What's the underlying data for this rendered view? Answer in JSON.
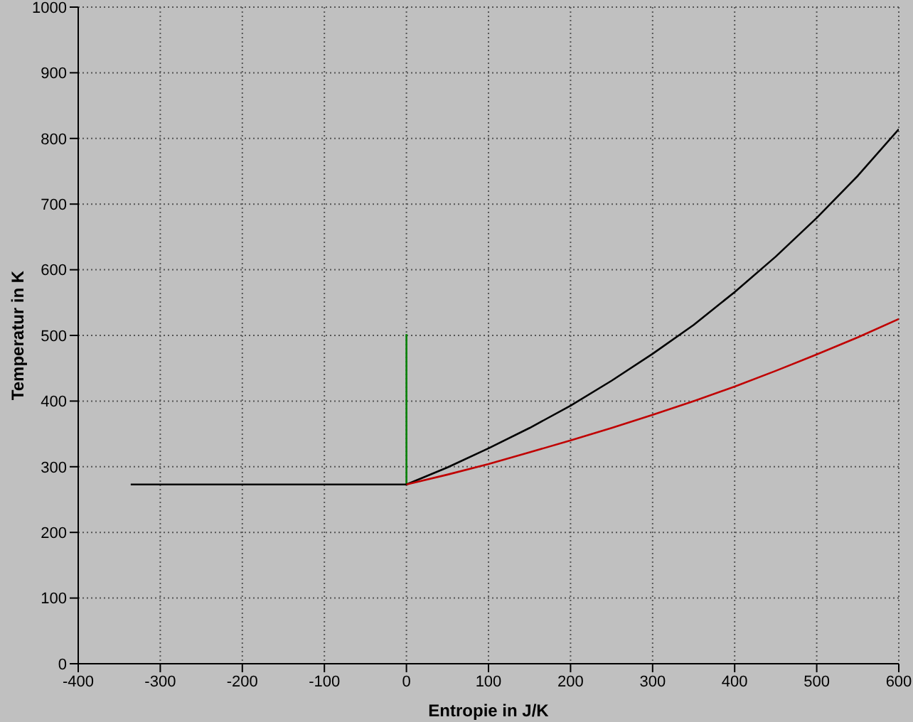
{
  "chart_data": {
    "type": "line",
    "xlabel": "Entropie in J/K",
    "ylabel": "Temperatur in K",
    "xlim": [
      -400,
      600
    ],
    "ylim": [
      0,
      1000
    ],
    "xticks": [
      -400,
      -300,
      -200,
      -100,
      0,
      100,
      200,
      300,
      400,
      500,
      600
    ],
    "yticks": [
      0,
      100,
      200,
      300,
      400,
      500,
      600,
      700,
      800,
      900,
      1000
    ],
    "grid": true,
    "series": [
      {
        "type": "line",
        "color": "#008000",
        "x": [
          0,
          0
        ],
        "values": [
          273,
          502
        ]
      },
      {
        "type": "line",
        "color": "#000000",
        "x": [
          -336,
          0,
          50,
          100,
          150,
          200,
          250,
          300,
          350,
          400,
          450,
          500,
          550,
          600
        ],
        "values": [
          273,
          273,
          299,
          328,
          359,
          393,
          431,
          472,
          516,
          566,
          620,
          679,
          743,
          814
        ]
      },
      {
        "type": "line",
        "color": "#c00000",
        "x": [
          0,
          50,
          100,
          150,
          200,
          250,
          300,
          350,
          400,
          450,
          500,
          550,
          600
        ],
        "values": [
          273,
          288,
          304,
          322,
          340,
          359,
          379,
          400,
          422,
          446,
          471,
          497,
          525
        ]
      }
    ]
  }
}
